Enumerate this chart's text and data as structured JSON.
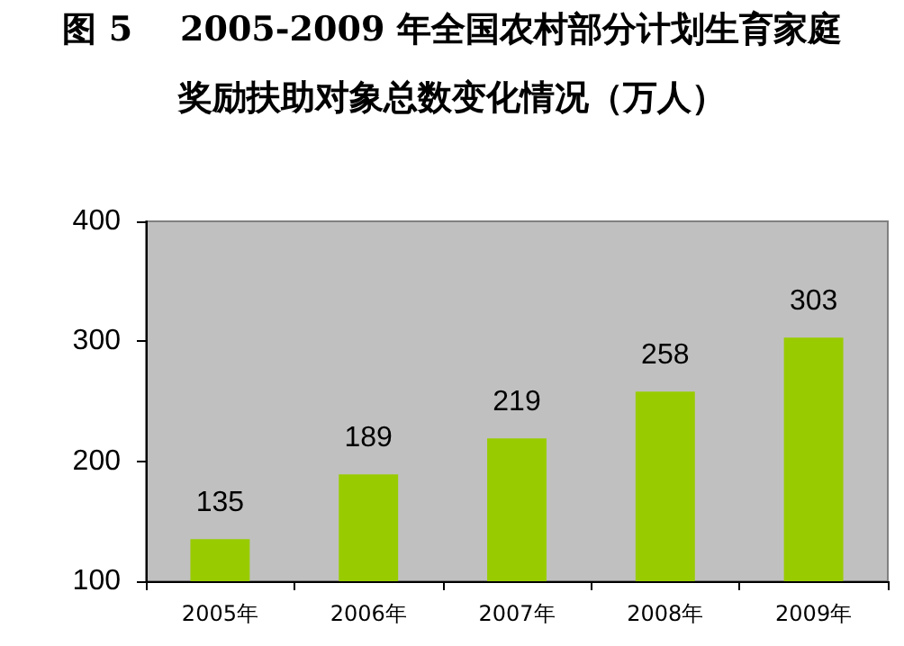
{
  "chart_data": {
    "type": "bar",
    "title": "图 5    2005-2009 年全国农村部分计划生育家庭",
    "subtitle": "奖励扶助对象总数变化情况（万人）",
    "categories": [
      "2005年",
      "2006年",
      "2007年",
      "2008年",
      "2009年"
    ],
    "values": [
      135,
      189,
      219,
      258,
      303
    ],
    "color": "#99cc00",
    "ylim": [
      100,
      400
    ],
    "yticks": [
      100,
      200,
      300,
      400
    ],
    "grid": false,
    "data_labels": true
  }
}
